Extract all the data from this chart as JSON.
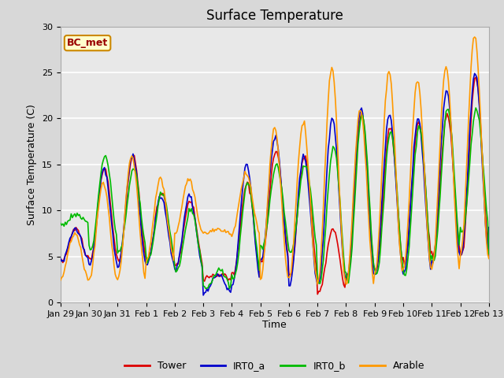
{
  "title": "Surface Temperature",
  "xlabel": "Time",
  "ylabel": "Surface Temperature (C)",
  "ylim": [
    0,
    30
  ],
  "xlim": [
    0,
    360
  ],
  "fig_bg_color": "#d8d8d8",
  "plot_bg_color": "#e8e8e8",
  "grid_color": "#ffffff",
  "annotation_text": "BC_met",
  "annotation_bg": "#ffffcc",
  "annotation_border": "#cc8800",
  "annotation_text_color": "#990000",
  "tick_labels": [
    "Jan 29",
    "Jan 30",
    "Jan 31",
    "Feb 1",
    "Feb 2",
    "Feb 3",
    "Feb 4",
    "Feb 5",
    "Feb 6",
    "Feb 7",
    "Feb 8",
    "Feb 9",
    "Feb 10",
    "Feb 11",
    "Feb 12",
    "Feb 13"
  ],
  "tick_positions": [
    0,
    24,
    48,
    72,
    96,
    120,
    144,
    168,
    192,
    216,
    240,
    264,
    288,
    312,
    336,
    360
  ],
  "yticks": [
    0,
    5,
    10,
    15,
    20,
    25,
    30
  ],
  "series_colors": {
    "Tower": "#dd0000",
    "IRT0_a": "#0000cc",
    "IRT0_b": "#00bb00",
    "Arable": "#ff9900"
  },
  "legend_labels": [
    "Tower",
    "IRT0_a",
    "IRT0_b",
    "Arable"
  ],
  "legend_colors": [
    "#dd0000",
    "#0000cc",
    "#00bb00",
    "#ff9900"
  ],
  "lw": 1.2
}
